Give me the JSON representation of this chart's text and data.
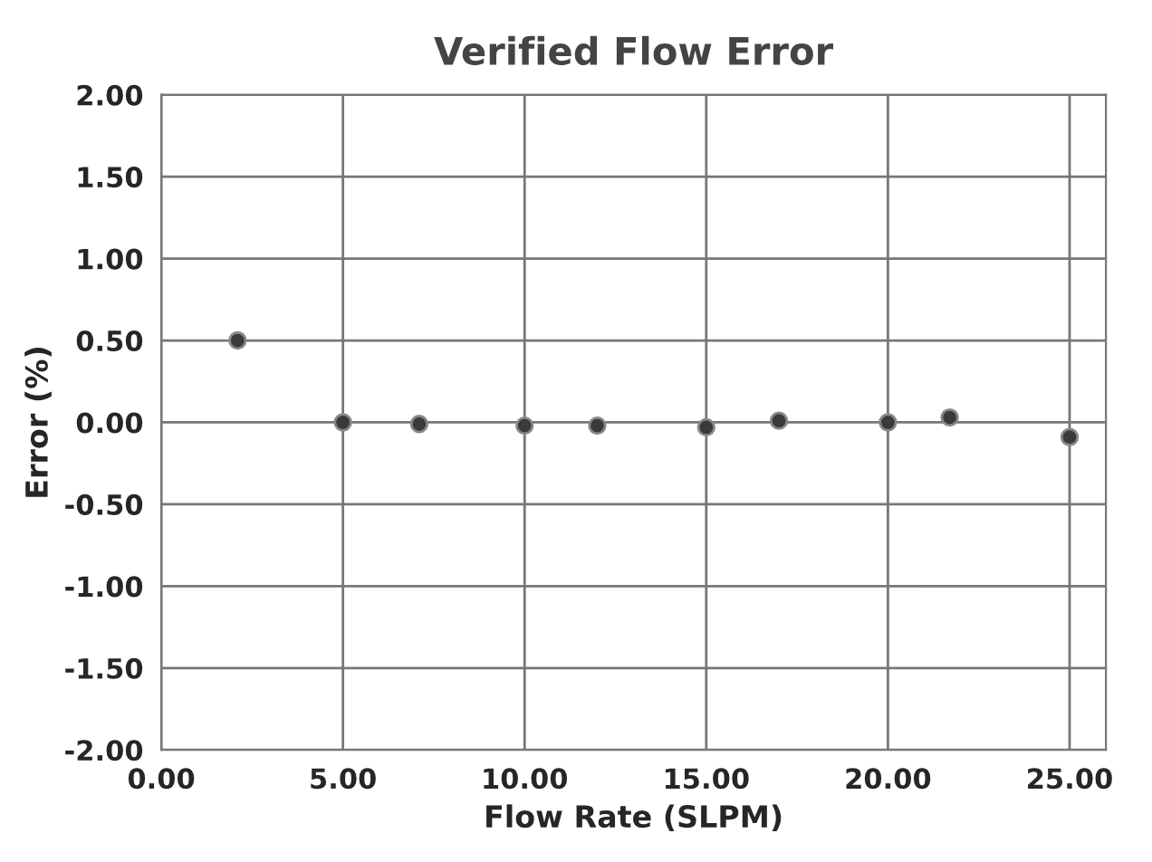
{
  "chart_data": {
    "type": "scatter",
    "title": "Verified Flow Error",
    "xlabel": "Flow Rate (SLPM)",
    "ylabel": "Error (%)",
    "x": [
      2.1,
      5.0,
      7.1,
      10.0,
      12.0,
      15.0,
      17.0,
      20.0,
      21.7,
      25.0
    ],
    "series": [
      {
        "color": "#3a3a3a",
        "values": [
          0.5,
          0.0,
          -0.01,
          -0.02,
          -0.02,
          -0.03,
          0.01,
          0.0,
          0.03,
          -0.09
        ]
      }
    ],
    "xlim": [
      0,
      26
    ],
    "ylim": [
      -2,
      2
    ],
    "xticks": [
      {
        "value": 0,
        "label": "0.00"
      },
      {
        "value": 5,
        "label": "5.00"
      },
      {
        "value": 10,
        "label": "10.00"
      },
      {
        "value": 15,
        "label": "15.00"
      },
      {
        "value": 20,
        "label": "20.00"
      },
      {
        "value": 25,
        "label": "25.00"
      }
    ],
    "yticks": [
      {
        "value": -2,
        "label": "-2.00"
      },
      {
        "value": -1.5,
        "label": "-1.50"
      },
      {
        "value": -1,
        "label": "-1.00"
      },
      {
        "value": -0.5,
        "label": "-0.50"
      },
      {
        "value": 0,
        "label": "0.00"
      },
      {
        "value": 0.5,
        "label": "0.50"
      },
      {
        "value": 1,
        "label": "1.00"
      },
      {
        "value": 1.5,
        "label": "1.50"
      },
      {
        "value": 2,
        "label": "2.00"
      }
    ],
    "grid": true,
    "marker": "circle"
  }
}
